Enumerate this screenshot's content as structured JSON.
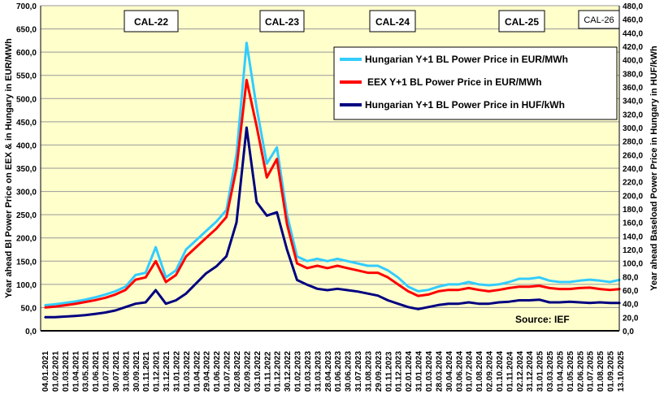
{
  "chart_data": {
    "type": "line",
    "left_ylabel": "Year ahead Bl Power Price on EEX & in Hungary in EUR/MWh",
    "right_ylabel": "Year ahead Baseload Power Price in Hungary in HUF/kWh",
    "left_ylim": [
      0,
      700
    ],
    "left_ticks": [
      "0,0",
      "50,0",
      "100,0",
      "150,0",
      "200,0",
      "250,0",
      "300,0",
      "350,0",
      "400,0",
      "450,0",
      "500,0",
      "550,0",
      "600,0",
      "650,0",
      "700,0"
    ],
    "right_ylim": [
      0,
      480
    ],
    "right_ticks": [
      "0,0",
      "20,0",
      "40,0",
      "60,0",
      "80,0",
      "100,0",
      "120,0",
      "140,0",
      "160,0",
      "180,0",
      "200,0",
      "220,0",
      "240,0",
      "260,0",
      "280,0",
      "300,0",
      "320,0",
      "340,0",
      "360,0",
      "380,0",
      "400,0",
      "420,0",
      "440,0",
      "460,0",
      "480,0"
    ],
    "grid": true,
    "x": [
      "04.01.2021",
      "01.02.2021",
      "01.03.2021",
      "01.04.2021",
      "03.05.2021",
      "01.06.2021",
      "01.07.2021",
      "30.07.2021",
      "31.08.2021",
      "30.09.2021",
      "01.11.2021",
      "01.12.2021",
      "31.12.2021",
      "31.01.2022",
      "01.03.2022",
      "01.04.2022",
      "29.04.2022",
      "01.06.2022",
      "01.07.2022",
      "02.08.2022",
      "02.09.2022",
      "03.10.2022",
      "01.11.2022",
      "01.12.2022",
      "30.12.2022",
      "01.02.2023",
      "01.03.2023",
      "31.03.2023",
      "28.04.2023",
      "01.06.2023",
      "30.06.2023",
      "31.07.2023",
      "31.08.2023",
      "29.09.2023",
      "01.11.2023",
      "01.12.2023",
      "02.01.2024",
      "31.01.2024",
      "01.03.2024",
      "28.03.2024",
      "30.04.2024",
      "03.06.2024",
      "01.07.2024",
      "01.08.2024",
      "02.09.2024",
      "01.10.2024",
      "01.11.2024",
      "02.12.2024",
      "31.12.2024",
      "31.01.2025",
      "03.03.2025",
      "01.04.2025",
      "01.05.2025",
      "02.06.2025",
      "01.07.2025",
      "01.08.2025",
      "01.09.2025",
      "13.10.2025"
    ],
    "series": [
      {
        "name": "Hungarian Y+1 BL Power Price in EUR/MWh",
        "axis": "left",
        "color": "#33CCFF",
        "values": [
          55,
          57,
          60,
          63,
          67,
          72,
          78,
          85,
          95,
          120,
          125,
          180,
          115,
          130,
          175,
          195,
          215,
          235,
          260,
          380,
          620,
          480,
          360,
          395,
          250,
          160,
          150,
          155,
          150,
          155,
          150,
          145,
          140,
          140,
          130,
          115,
          95,
          85,
          88,
          95,
          100,
          100,
          105,
          100,
          98,
          100,
          105,
          112,
          112,
          115,
          108,
          105,
          105,
          108,
          110,
          108,
          105,
          110
        ]
      },
      {
        "name": "EEX Y+1 BL Power Price in EUR/MWh",
        "axis": "left",
        "color": "#FF0000",
        "values": [
          50,
          52,
          55,
          58,
          62,
          66,
          71,
          78,
          88,
          110,
          115,
          150,
          105,
          120,
          160,
          180,
          200,
          220,
          245,
          350,
          540,
          440,
          330,
          370,
          230,
          145,
          135,
          140,
          135,
          140,
          135,
          130,
          125,
          125,
          115,
          100,
          85,
          75,
          78,
          85,
          88,
          88,
          92,
          88,
          85,
          88,
          92,
          95,
          95,
          97,
          92,
          90,
          90,
          92,
          93,
          90,
          88,
          90
        ]
      },
      {
        "name": "Hungarian Y+1 BL Power Price in HUF/kWh",
        "axis": "right",
        "color": "#000080",
        "values": [
          20,
          20,
          21,
          22,
          23,
          25,
          27,
          30,
          35,
          40,
          42,
          60,
          40,
          45,
          55,
          70,
          85,
          95,
          110,
          160,
          300,
          190,
          170,
          175,
          120,
          75,
          68,
          62,
          60,
          62,
          60,
          58,
          55,
          52,
          45,
          40,
          35,
          32,
          35,
          38,
          40,
          40,
          42,
          40,
          40,
          42,
          43,
          45,
          45,
          46,
          42,
          42,
          43,
          42,
          41,
          42,
          41,
          41
        ]
      }
    ],
    "period_labels": [
      "CAL-22",
      "CAL-23",
      "CAL-24",
      "CAL-25",
      "CAL-26"
    ],
    "source": "Source: IEF",
    "legend_placement": "top-right"
  }
}
